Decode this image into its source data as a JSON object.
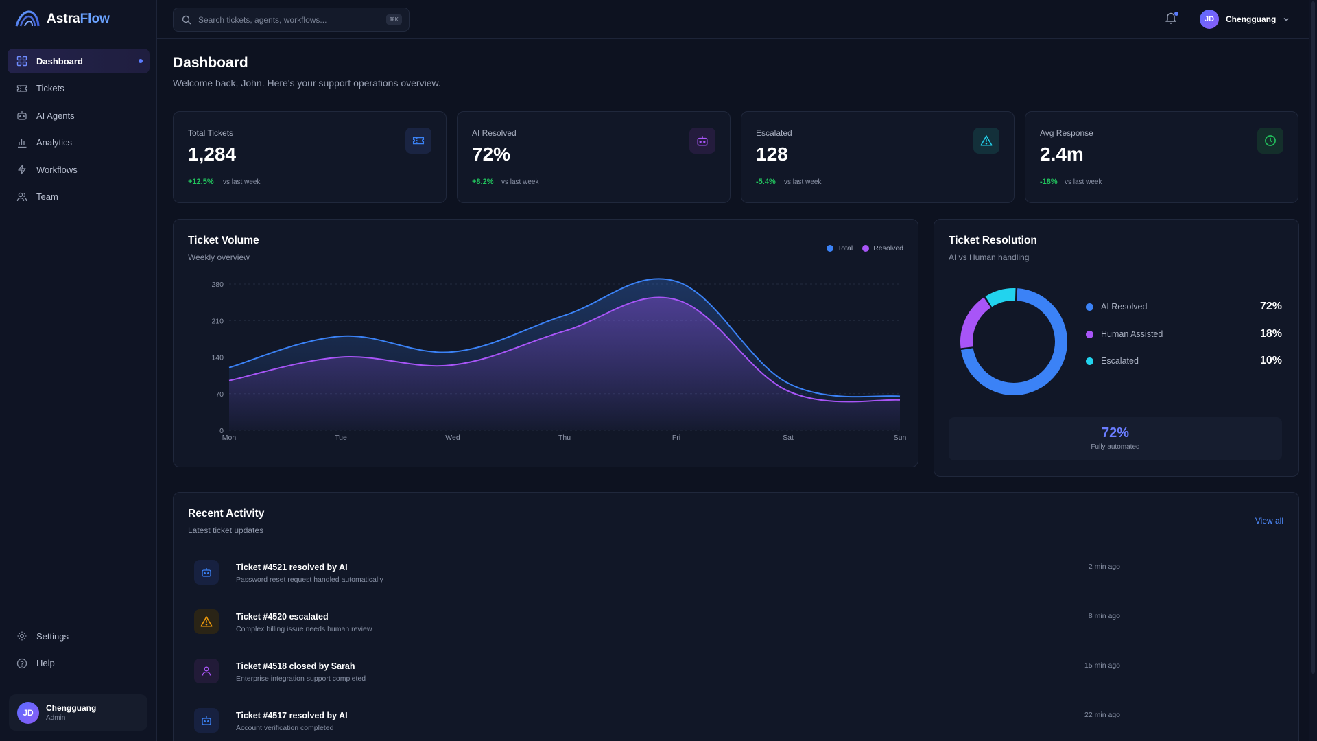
{
  "brand": {
    "name_part1": "Astra",
    "name_part2": "Flow"
  },
  "search": {
    "placeholder": "Search tickets, agents, workflows...",
    "shortcut": "⌘K"
  },
  "header": {
    "user_initials": "JD",
    "user_name": "Chengguang"
  },
  "sidebar": {
    "items": [
      {
        "label": "Dashboard",
        "icon": "grid-icon",
        "active": true
      },
      {
        "label": "Tickets",
        "icon": "ticket-icon"
      },
      {
        "label": "AI Agents",
        "icon": "bot-icon"
      },
      {
        "label": "Analytics",
        "icon": "bar-chart-icon"
      },
      {
        "label": "Workflows",
        "icon": "zap-icon"
      },
      {
        "label": "Team",
        "icon": "users-icon"
      }
    ],
    "bottom_items": [
      {
        "label": "Settings",
        "icon": "gear-icon"
      },
      {
        "label": "Help",
        "icon": "help-icon"
      }
    ],
    "user": {
      "initials": "JD",
      "name": "Chengguang",
      "role": "Admin"
    }
  },
  "page": {
    "title": "Dashboard",
    "subtitle": "Welcome back, John. Here's your support operations overview."
  },
  "stats": [
    {
      "label": "Total Tickets",
      "value": "1,284",
      "change": "+12.5%",
      "vs": "vs last week",
      "icon": "ticket-icon",
      "color": "#3b82f6"
    },
    {
      "label": "AI Resolved",
      "value": "72%",
      "change": "+8.2%",
      "vs": "vs last week",
      "icon": "bot-icon",
      "color": "#a855f7"
    },
    {
      "label": "Escalated",
      "value": "128",
      "change": "-5.4%",
      "vs": "vs last week",
      "icon": "alert-triangle-icon",
      "color": "#22d3ee"
    },
    {
      "label": "Avg Response",
      "value": "2.4m",
      "change": "-18%",
      "vs": "vs last week",
      "icon": "clock-icon",
      "color": "#22c55e"
    }
  ],
  "volume": {
    "title": "Ticket Volume",
    "subtitle": "Weekly overview",
    "legend_total": "Total",
    "legend_resolved": "Resolved"
  },
  "chart_data": {
    "type": "area",
    "categories": [
      "Mon",
      "Tue",
      "Wed",
      "Thu",
      "Fri",
      "Sat",
      "Sun"
    ],
    "series": [
      {
        "name": "Total",
        "values": [
          120,
          180,
          150,
          220,
          285,
          90,
          65
        ],
        "color": "#3b82f6"
      },
      {
        "name": "Resolved",
        "values": [
          95,
          140,
          125,
          190,
          250,
          75,
          58
        ],
        "color": "#a855f7"
      }
    ],
    "yticks": [
      0,
      70,
      140,
      210,
      280
    ],
    "ylim": [
      0,
      280
    ]
  },
  "resolution": {
    "title": "Ticket Resolution",
    "subtitle": "AI vs Human handling",
    "items": [
      {
        "label": "AI Resolved",
        "pct": "72%",
        "value": 72,
        "color": "#3b82f6"
      },
      {
        "label": "Human Assisted",
        "pct": "18%",
        "value": 18,
        "color": "#a855f7"
      },
      {
        "label": "Escalated",
        "pct": "10%",
        "value": 10,
        "color": "#22d3ee"
      }
    ],
    "auto_pct": "72%",
    "auto_label": "Fully automated"
  },
  "activity": {
    "title": "Recent Activity",
    "subtitle": "Latest ticket updates",
    "view_all": "View all",
    "items": [
      {
        "title": "Ticket #4521 resolved by AI",
        "desc": "Password reset request handled automatically",
        "time": "2 min ago",
        "icon": "bot-icon",
        "color": "#3b82f6"
      },
      {
        "title": "Ticket #4520 escalated",
        "desc": "Complex billing issue needs human review",
        "time": "8 min ago",
        "icon": "alert-triangle-icon",
        "color": "#f59e0b"
      },
      {
        "title": "Ticket #4518 closed by Sarah",
        "desc": "Enterprise integration support completed",
        "time": "15 min ago",
        "icon": "user-icon",
        "color": "#a855f7"
      },
      {
        "title": "Ticket #4517 resolved by AI",
        "desc": "Account verification completed",
        "time": "22 min ago",
        "icon": "bot-icon",
        "color": "#3b82f6"
      }
    ]
  }
}
